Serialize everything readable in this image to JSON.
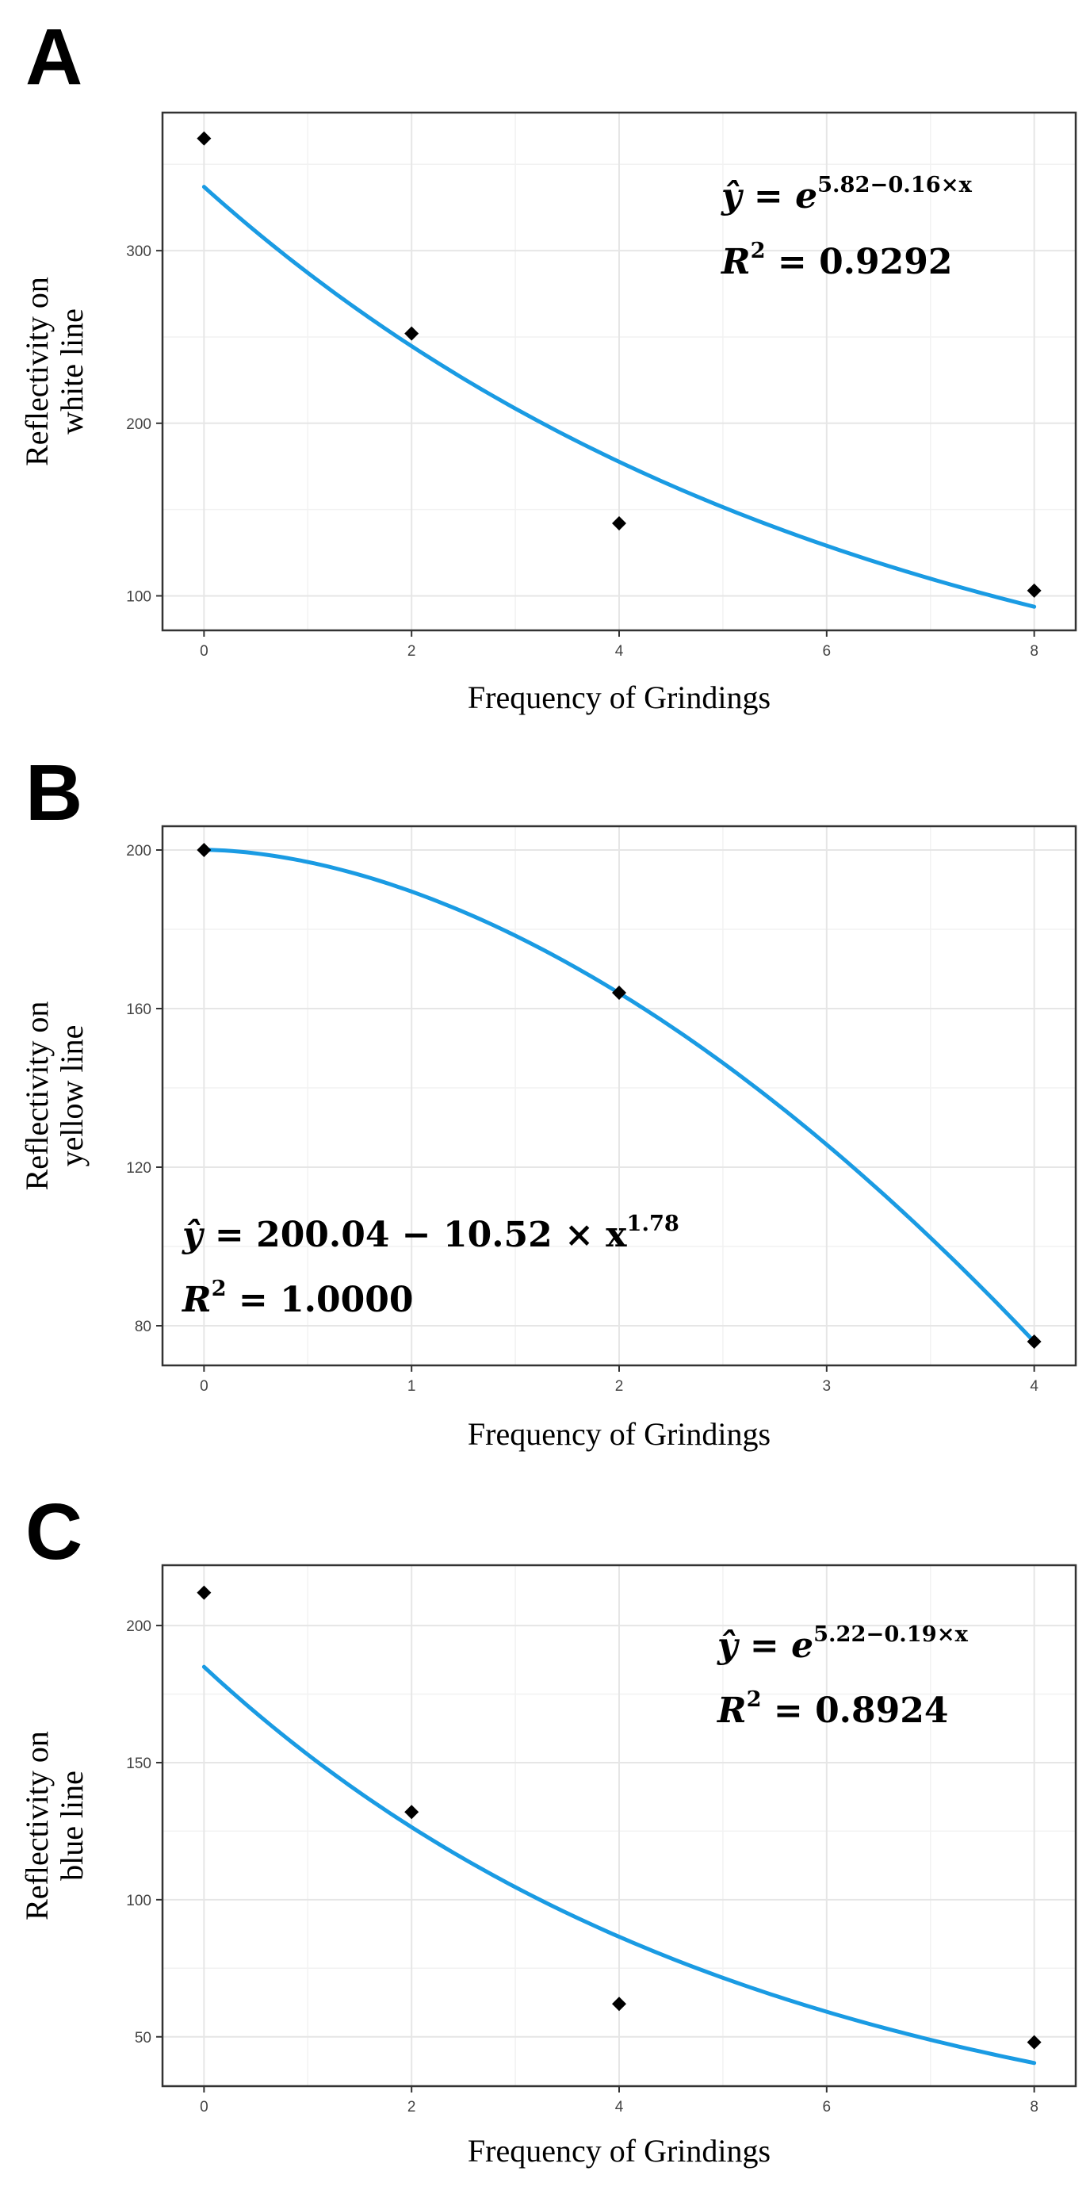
{
  "chart_data": [
    {
      "panel": "A",
      "type": "scatter",
      "xlabel": "Frequency of Grindings",
      "ylabel_lines": [
        "Reflectivity on",
        "white line"
      ],
      "x_ticks": [
        "0",
        "2",
        "4",
        "6",
        "8"
      ],
      "y_ticks": [
        "100",
        "200",
        "300"
      ],
      "xlim": [
        -0.4,
        8.4
      ],
      "ylim": [
        80,
        380
      ],
      "points": [
        {
          "x": 0,
          "y": 365
        },
        {
          "x": 2,
          "y": 252
        },
        {
          "x": 4,
          "y": 142
        },
        {
          "x": 8,
          "y": 103
        }
      ],
      "fit": {
        "model": "exponential",
        "a": 5.82,
        "b": -0.16,
        "x_range": [
          0,
          8
        ]
      },
      "equation": {
        "lhs": "ŷ",
        "equals": "=",
        "base": "e",
        "exponent": "5.82−0.16×x",
        "r2_label": "R",
        "r2_sup": "2",
        "r2_value": "= 0.9292"
      },
      "equation_position": "top-right",
      "colors": {
        "points": "#000000",
        "fit": "#1a9be3"
      }
    },
    {
      "panel": "B",
      "type": "scatter",
      "xlabel": "Frequency of Grindings",
      "ylabel_lines": [
        "Reflectivity on",
        "yellow line"
      ],
      "x_ticks": [
        "0",
        "1",
        "2",
        "3",
        "4"
      ],
      "y_ticks": [
        "80",
        "120",
        "160",
        "200"
      ],
      "xlim": [
        -0.2,
        4.2
      ],
      "ylim": [
        70,
        206
      ],
      "points": [
        {
          "x": 0,
          "y": 200
        },
        {
          "x": 2,
          "y": 164
        },
        {
          "x": 4,
          "y": 76
        }
      ],
      "fit": {
        "model": "power",
        "c": 200.04,
        "k": 10.52,
        "p": 1.78,
        "x_range": [
          0,
          4
        ]
      },
      "equation": {
        "lhs": "ŷ",
        "equals": "=",
        "body": "200.04 − 10.52 × x",
        "exponent": "1.78",
        "r2_label": "R",
        "r2_sup": "2",
        "r2_value": "= 1.0000"
      },
      "equation_position": "bottom-left",
      "colors": {
        "points": "#000000",
        "fit": "#1a9be3"
      }
    },
    {
      "panel": "C",
      "type": "scatter",
      "xlabel": "Frequency of Grindings",
      "ylabel_lines": [
        "Reflectivity on",
        "blue line"
      ],
      "x_ticks": [
        "0",
        "2",
        "4",
        "6",
        "8"
      ],
      "y_ticks": [
        "50",
        "100",
        "150",
        "200"
      ],
      "xlim": [
        -0.4,
        8.4
      ],
      "ylim": [
        32,
        222
      ],
      "points": [
        {
          "x": 0,
          "y": 212
        },
        {
          "x": 2,
          "y": 132
        },
        {
          "x": 4,
          "y": 62
        },
        {
          "x": 8,
          "y": 48
        }
      ],
      "fit": {
        "model": "exponential",
        "a": 5.22,
        "b": -0.19,
        "x_range": [
          0,
          8
        ]
      },
      "equation": {
        "lhs": "ŷ",
        "equals": "=",
        "base": "e",
        "exponent": "5.22−0.19×x",
        "r2_label": "R",
        "r2_sup": "2",
        "r2_value": "= 0.8924"
      },
      "equation_position": "top-right",
      "colors": {
        "points": "#000000",
        "fit": "#1a9be3"
      }
    }
  ],
  "panels": [
    {
      "label": "A"
    },
    {
      "label": "B"
    },
    {
      "label": "C"
    }
  ]
}
